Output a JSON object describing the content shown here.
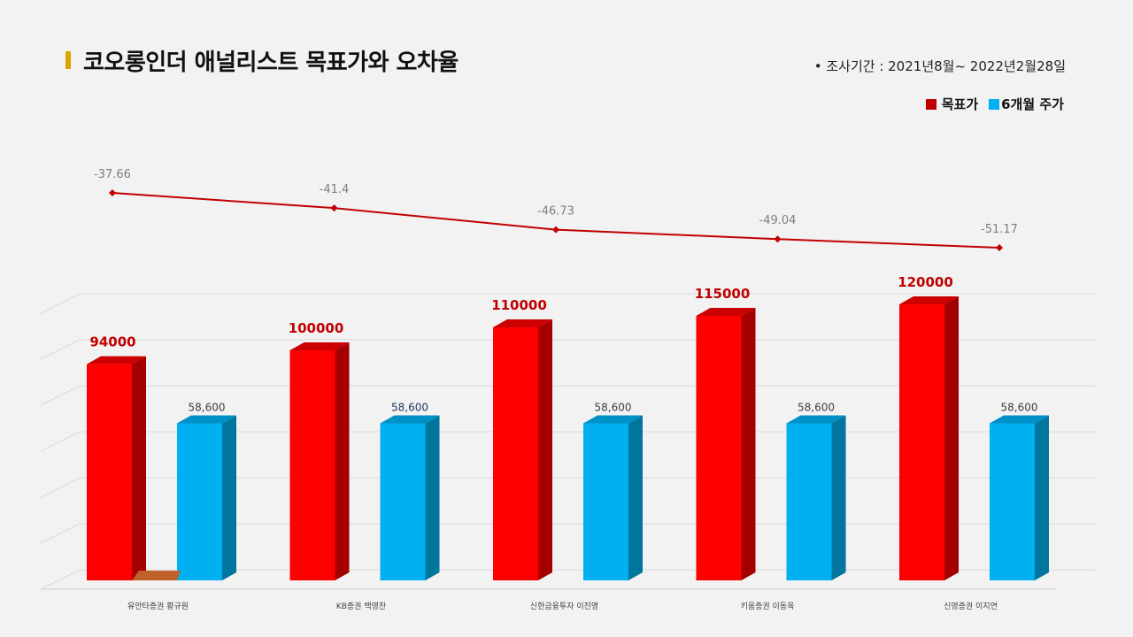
{
  "header": {
    "title": "코오롱인더 애널리스트 목표가와 오차율",
    "period": "•  조사기간 : 2021년8월~ 2022년2월28일"
  },
  "legend": {
    "target_label": "목표가",
    "price_label": "6개월 주가"
  },
  "colors": {
    "target": "#ff0000",
    "target_dark": "#a50000",
    "target_top": "#cc0000",
    "price": "#00b0f0",
    "price_dark": "#00759e",
    "price_top": "#0090c8",
    "line": "#c00000",
    "extra_stub": "#c0602a"
  },
  "chart_data": {
    "type": "bar",
    "categories": [
      "유안타증권  황규원",
      "KB증권  백영찬",
      "신한금융투자  이진명",
      "키움증권  이동욱",
      "신영증권  이지연"
    ],
    "series": [
      {
        "name": "목표가",
        "values": [
          94000,
          100000,
          110000,
          115000,
          120000
        ],
        "labels": [
          "94000",
          "100000",
          "110000",
          "115000",
          "120000"
        ]
      },
      {
        "name": "6개월 주가",
        "values": [
          58600,
          58600,
          58600,
          58600,
          58600
        ],
        "labels": [
          "58,600",
          "58,600",
          "58,600",
          "58,600",
          "58,600"
        ]
      }
    ],
    "line_series": {
      "values": [
        -37.66,
        -41.4,
        -46.73,
        -49.04,
        -51.17
      ],
      "labels": [
        "-37.66",
        "-41.4",
        "-46.73",
        "-49.04",
        "-51.17"
      ]
    },
    "ylim": [
      0,
      120000
    ],
    "grid": true,
    "legend_position": "top-right"
  }
}
